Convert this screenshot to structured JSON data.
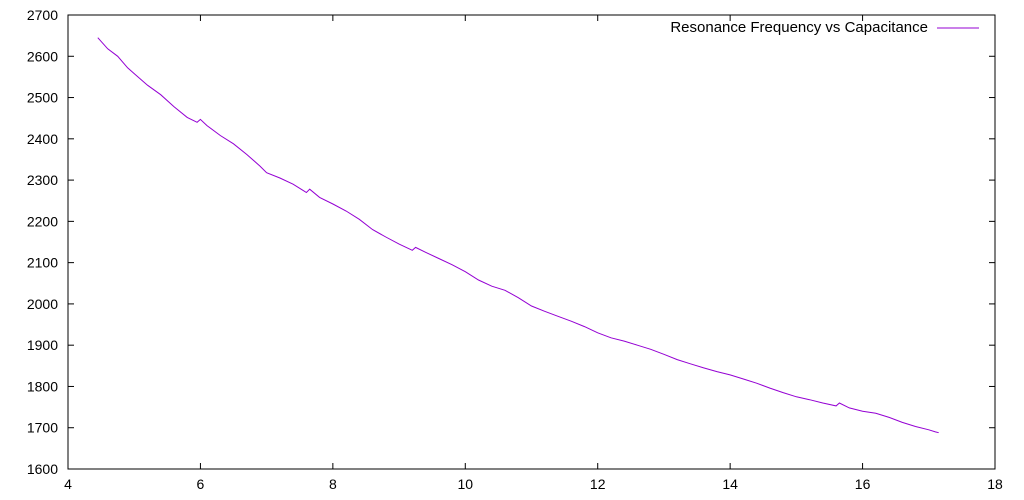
{
  "chart_data": {
    "type": "line",
    "title": "",
    "xlabel": "",
    "ylabel": "",
    "xlim": [
      4,
      18
    ],
    "ylim": [
      1600,
      2700
    ],
    "x_ticks": [
      4,
      6,
      8,
      10,
      12,
      14,
      16,
      18
    ],
    "y_ticks": [
      1600,
      1700,
      1800,
      1900,
      2000,
      2100,
      2200,
      2300,
      2400,
      2500,
      2600,
      2700
    ],
    "grid": false,
    "legend_position": "top-right",
    "series": [
      {
        "name": "Resonance Frequency vs Capacitance",
        "color": "#9400d3",
        "points": [
          [
            4.45,
            2645
          ],
          [
            4.6,
            2618
          ],
          [
            4.75,
            2600
          ],
          [
            4.9,
            2572
          ],
          [
            5.0,
            2558
          ],
          [
            5.2,
            2530
          ],
          [
            5.4,
            2507
          ],
          [
            5.6,
            2478
          ],
          [
            5.8,
            2452
          ],
          [
            5.95,
            2440
          ],
          [
            6.0,
            2447
          ],
          [
            6.1,
            2432
          ],
          [
            6.3,
            2408
          ],
          [
            6.5,
            2388
          ],
          [
            6.7,
            2362
          ],
          [
            6.9,
            2334
          ],
          [
            7.0,
            2318
          ],
          [
            7.2,
            2305
          ],
          [
            7.4,
            2290
          ],
          [
            7.55,
            2275
          ],
          [
            7.6,
            2270
          ],
          [
            7.65,
            2278
          ],
          [
            7.8,
            2258
          ],
          [
            8.0,
            2242
          ],
          [
            8.2,
            2225
          ],
          [
            8.4,
            2205
          ],
          [
            8.6,
            2180
          ],
          [
            8.8,
            2162
          ],
          [
            9.0,
            2145
          ],
          [
            9.2,
            2130
          ],
          [
            9.25,
            2137
          ],
          [
            9.4,
            2125
          ],
          [
            9.6,
            2110
          ],
          [
            9.8,
            2095
          ],
          [
            10.0,
            2078
          ],
          [
            10.2,
            2058
          ],
          [
            10.4,
            2043
          ],
          [
            10.6,
            2033
          ],
          [
            10.8,
            2015
          ],
          [
            11.0,
            1995
          ],
          [
            11.2,
            1982
          ],
          [
            11.4,
            1970
          ],
          [
            11.6,
            1958
          ],
          [
            11.8,
            1945
          ],
          [
            12.0,
            1930
          ],
          [
            12.2,
            1918
          ],
          [
            12.4,
            1910
          ],
          [
            12.6,
            1900
          ],
          [
            12.8,
            1890
          ],
          [
            13.0,
            1878
          ],
          [
            13.2,
            1865
          ],
          [
            13.4,
            1855
          ],
          [
            13.6,
            1845
          ],
          [
            13.8,
            1836
          ],
          [
            14.0,
            1828
          ],
          [
            14.2,
            1818
          ],
          [
            14.4,
            1808
          ],
          [
            14.6,
            1796
          ],
          [
            14.8,
            1785
          ],
          [
            15.0,
            1775
          ],
          [
            15.2,
            1768
          ],
          [
            15.4,
            1760
          ],
          [
            15.6,
            1753
          ],
          [
            15.65,
            1760
          ],
          [
            15.8,
            1748
          ],
          [
            16.0,
            1740
          ],
          [
            16.2,
            1735
          ],
          [
            16.4,
            1725
          ],
          [
            16.6,
            1713
          ],
          [
            16.8,
            1703
          ],
          [
            17.0,
            1695
          ],
          [
            17.1,
            1690
          ],
          [
            17.15,
            1688
          ]
        ]
      }
    ]
  }
}
